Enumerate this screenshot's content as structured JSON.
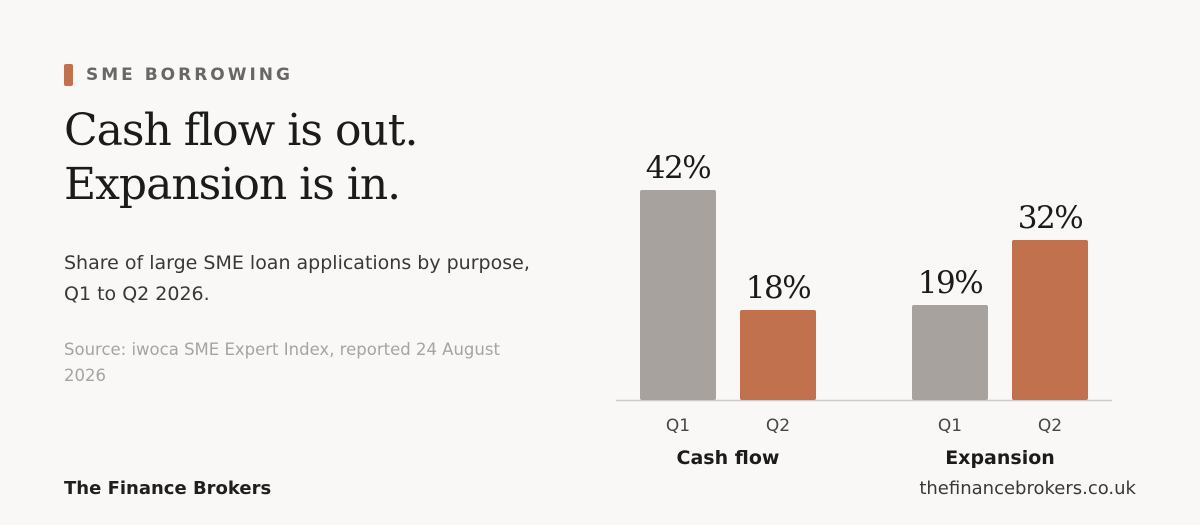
{
  "header": {
    "eyebrow": "SME BORROWING",
    "headline_line1": "Cash flow is out.",
    "headline_line2": "Expansion is in.",
    "subtitle": "Share of large SME loan applications by purpose, Q1 to Q2 2026.",
    "source": "Source: iwoca SME Expert Index, reported 24 August 2026"
  },
  "footer": {
    "brand": "The Finance Brokers",
    "url": "thefinancebrokers.co.uk"
  },
  "colors": {
    "accent": "#c2714f",
    "neutral": "#a7a29d",
    "axis": "#cfcbc7"
  },
  "chart_data": {
    "type": "bar",
    "unit": "%",
    "ylim": [
      0,
      50
    ],
    "grid": false,
    "groups": [
      {
        "name": "Cash flow",
        "categories": [
          "Q1",
          "Q2"
        ],
        "values": [
          42,
          18
        ],
        "labels": [
          "42%",
          "18%"
        ]
      },
      {
        "name": "Expansion",
        "categories": [
          "Q1",
          "Q2"
        ],
        "values": [
          19,
          32
        ],
        "labels": [
          "19%",
          "32%"
        ]
      }
    ]
  }
}
